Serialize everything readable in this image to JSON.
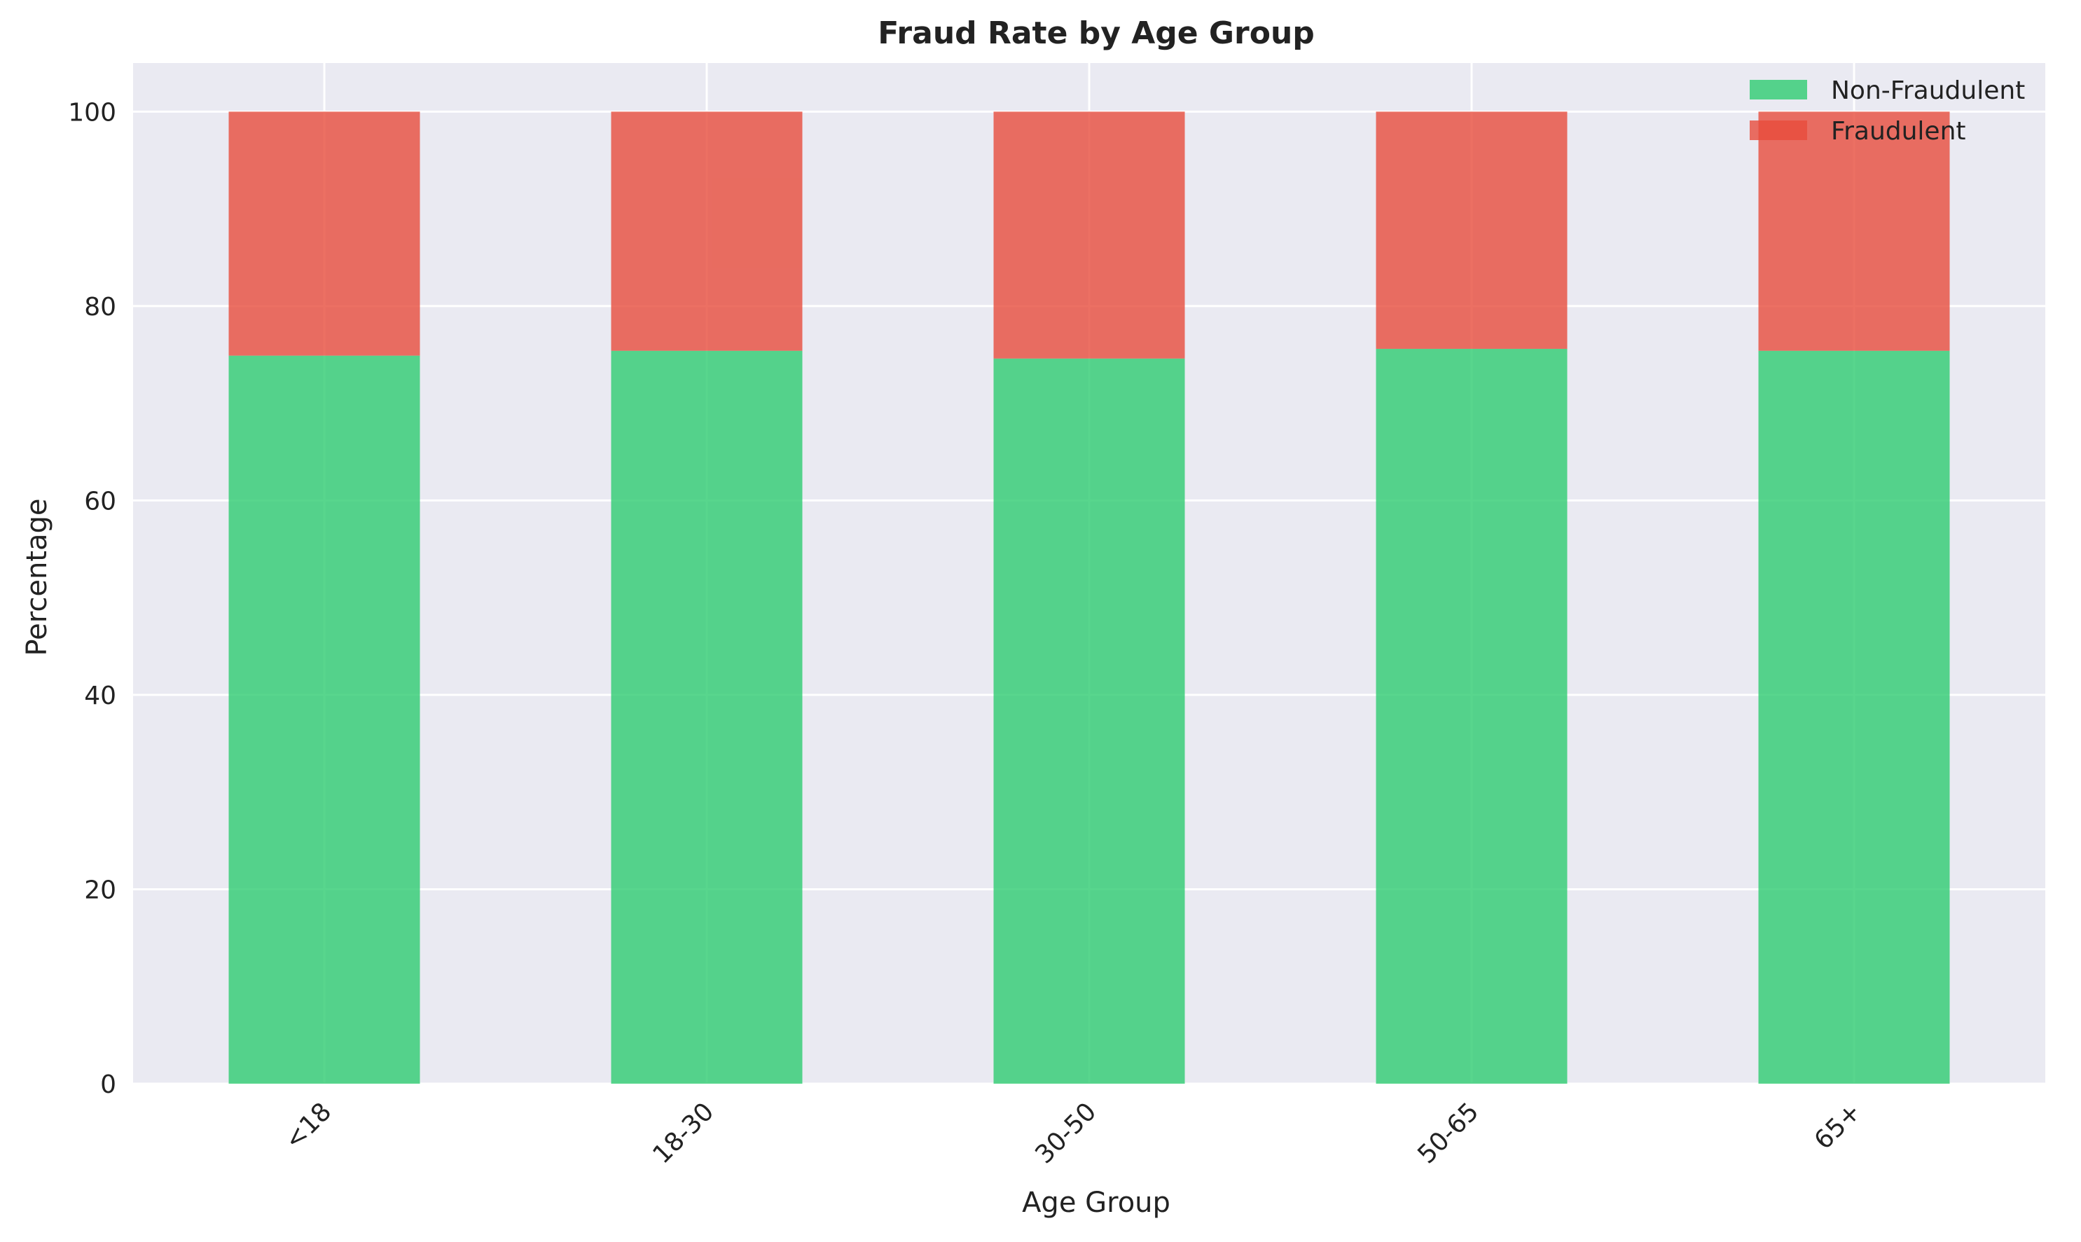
{
  "chart_data": {
    "type": "bar",
    "stacked": true,
    "title": "Fraud Rate by Age Group",
    "xlabel": "Age Group",
    "ylabel": "Percentage",
    "categories": [
      "<18",
      "18-30",
      "30-50",
      "50-65",
      "65+"
    ],
    "series": [
      {
        "name": "Non-Fraudulent",
        "color": "#2ecc71",
        "values": [
          74.9,
          75.4,
          74.6,
          75.6,
          75.4
        ]
      },
      {
        "name": "Fraudulent",
        "color": "#e74c3c",
        "values": [
          25.1,
          24.6,
          25.4,
          24.4,
          24.6
        ]
      }
    ],
    "ylim": [
      0,
      105
    ],
    "yticks": [
      0,
      20,
      40,
      60,
      80,
      100
    ],
    "grid": true,
    "legend_position": "top-right",
    "background": "#eaeaf2"
  }
}
